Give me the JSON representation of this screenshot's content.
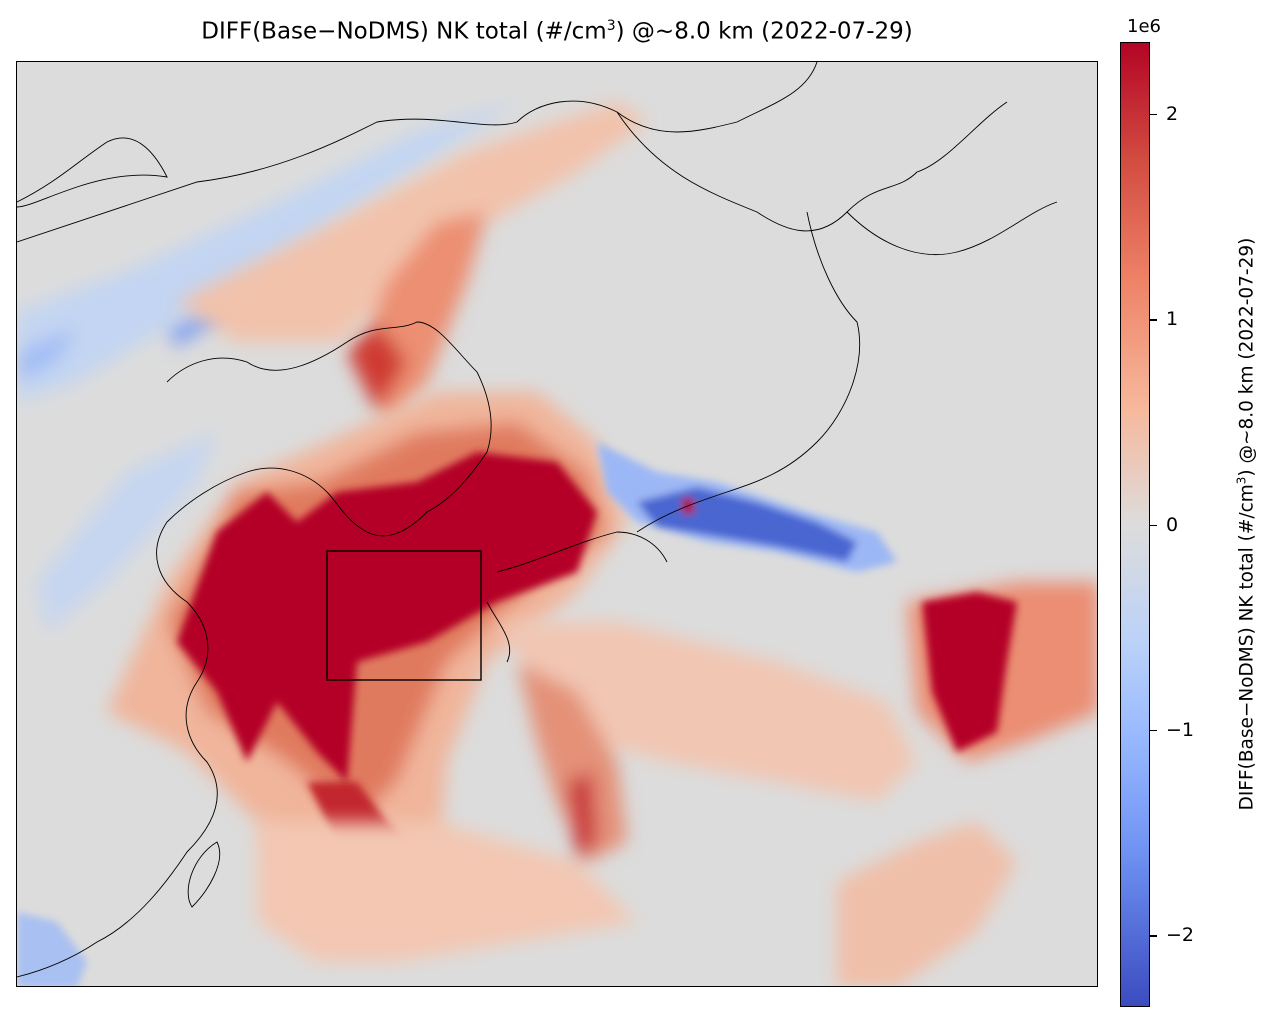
{
  "title": {
    "prefix": "DIFF(Base−NoDMS) NK total (#/cm",
    "sup": "3",
    "suffix": ") @~8.0 km (2022-07-29)"
  },
  "colorbar": {
    "exponent": "1e6",
    "label_prefix": "DIFF(Base−NoDMS) NK total (#/cm",
    "label_sup": "3",
    "label_suffix": ") @~8.0 km (2022-07-29)",
    "range": [
      -2.35,
      2.35
    ],
    "ticks": [
      {
        "value": 2,
        "label": "2"
      },
      {
        "value": 1,
        "label": "1"
      },
      {
        "value": 0,
        "label": "0"
      },
      {
        "value": -1,
        "label": "−1"
      },
      {
        "value": -2,
        "label": "−2"
      }
    ],
    "colormap": "coolwarm",
    "colors": {
      "high": "#b40426",
      "mid": "#dddcdc",
      "low": "#3b4cc0"
    }
  },
  "map": {
    "variable": "NK total difference",
    "date": "2022-07-29",
    "altitude_km": 8.0,
    "region": "East Asia / Northwest Pacific",
    "highlight_box": true
  }
}
